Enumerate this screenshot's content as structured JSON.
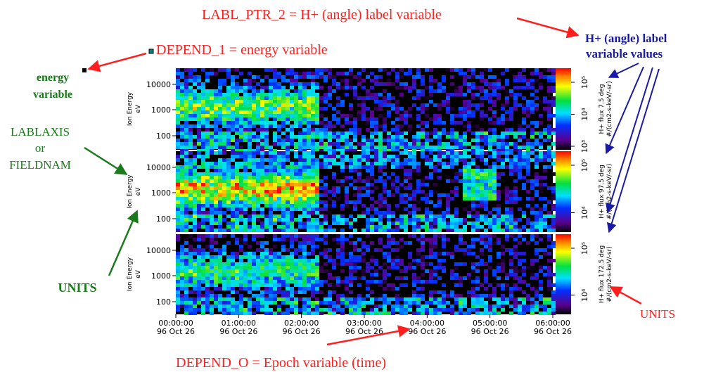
{
  "annotations": {
    "labl_ptr": "LABL_PTR_2 = H+ (angle) label variable",
    "label_values": [
      "H+ (angle) label",
      "variable values"
    ],
    "depend_1": "DEPEND_1 = energy variable",
    "energy_variable": [
      "energy",
      "variable"
    ],
    "lablaxis": [
      "LABLAXIS",
      "or",
      "FIELDNAM"
    ],
    "units_left": "UNITS",
    "units_right": "UNITS",
    "depend_0": "DEPEND_O = Epoch variable (time)"
  },
  "panels": [
    {
      "ylabel": "Ion Energy",
      "yunits": "eV",
      "yticks": [
        "10000",
        "1000",
        "100"
      ],
      "cbar_label": "H+ flux 7.5 deg",
      "cbar_units": "#/(cm2-s-keV/-sr)",
      "cbar_ticks": [
        "10⁵",
        "10⁴",
        "10³"
      ]
    },
    {
      "ylabel": "Ion Energy",
      "yunits": "eV",
      "yticks": [
        "10000",
        "1000",
        "100"
      ],
      "cbar_label": "H+ flux 97.5 deg",
      "cbar_units": "#/(cm2-s-keV/-sr)",
      "cbar_ticks": [
        "10⁵",
        "10⁴"
      ]
    },
    {
      "ylabel": "Ion Energy",
      "yunits": "eV",
      "yticks": [
        "10000",
        "1000",
        "100"
      ],
      "cbar_label": "H+ flux 172.5 deg",
      "cbar_units": "#/(cm2-s-keV/-sr)",
      "cbar_ticks": [
        "10⁵",
        "10⁴"
      ]
    }
  ],
  "xticks": [
    {
      "time": "00:00:00",
      "date": "96 Oct 26"
    },
    {
      "time": "01:00:00",
      "date": "96 Oct 26"
    },
    {
      "time": "02:00:00",
      "date": "96 Oct 26"
    },
    {
      "time": "03:00:00",
      "date": "96 Oct 26"
    },
    {
      "time": "04:00:00",
      "date": "96 Oct 26"
    },
    {
      "time": "05:00:00",
      "date": "96 Oct 26"
    },
    {
      "time": "06:00:00",
      "date": "96 Oct 26"
    }
  ]
}
